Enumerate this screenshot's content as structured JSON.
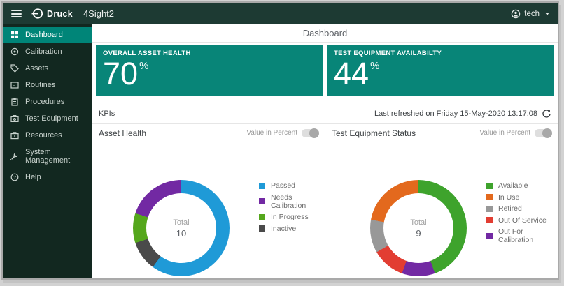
{
  "window": {
    "topbar": {
      "brand_bold": "Druck",
      "brand_product": "4Sight2",
      "user": "tech",
      "icons": [
        "menu-icon",
        "druck-logo",
        "user-icon",
        "caret-down-icon"
      ]
    },
    "sidebar": {
      "items": [
        {
          "label": "Dashboard",
          "icon": "dashboard-icon",
          "active": true
        },
        {
          "label": "Calibration",
          "icon": "calibration-icon",
          "active": false
        },
        {
          "label": "Assets",
          "icon": "tag-icon",
          "active": false
        },
        {
          "label": "Routines",
          "icon": "routines-icon",
          "active": false
        },
        {
          "label": "Procedures",
          "icon": "clipboard-icon",
          "active": false
        },
        {
          "label": "Test Equipment",
          "icon": "test-equipment-icon",
          "active": false
        },
        {
          "label": "Resources",
          "icon": "briefcase-icon",
          "active": false
        },
        {
          "label": "System Management",
          "icon": "wrench-icon",
          "active": false
        },
        {
          "label": "Help",
          "icon": "help-icon",
          "active": false
        }
      ]
    },
    "main": {
      "page_title": "Dashboard",
      "kpi_cards": [
        {
          "label": "OVERALL ASSET HEALTH",
          "value": "70",
          "unit": "%",
          "color": "#088578"
        },
        {
          "label": "TEST EQUIPMENT AVAILABILTY",
          "value": "44",
          "unit": "%",
          "color": "#088578"
        }
      ],
      "kpis_bar": {
        "title": "KPIs",
        "last_refreshed": "Last refreshed on Friday 15-May-2020 13:17:08",
        "refresh_icon": "refresh-icon"
      }
    }
  },
  "chart_data": [
    {
      "type": "pie",
      "subtype": "donut",
      "title": "Asset Health",
      "toggle_label": "Value in Percent",
      "toggle_state": "off",
      "center_label": "Total",
      "total": 10,
      "legend_position": "right",
      "slices": [
        {
          "label": "Passed",
          "value": 6,
          "color": "#1f9ad7"
        },
        {
          "label": "Needs Calibration",
          "value": 2,
          "color": "#7229a3"
        },
        {
          "label": "In Progress",
          "value": 1,
          "color": "#55a71c"
        },
        {
          "label": "Inactive",
          "value": 1,
          "color": "#4a4a4a"
        }
      ],
      "draw_order_clockwise": [
        "Passed",
        "Inactive",
        "In Progress",
        "Needs Calibration"
      ]
    },
    {
      "type": "pie",
      "subtype": "donut",
      "title": "Test Equipment Status",
      "toggle_label": "Value in Percent",
      "toggle_state": "off",
      "center_label": "Total",
      "total": 9,
      "legend_position": "right",
      "slices": [
        {
          "label": "Available",
          "value": 4,
          "color": "#3ea32c"
        },
        {
          "label": "In Use",
          "value": 2,
          "color": "#e3691d"
        },
        {
          "label": "Retired",
          "value": 1,
          "color": "#989898"
        },
        {
          "label": "Out Of Service",
          "value": 1,
          "color": "#e23d32"
        },
        {
          "label": "Out For Calibration",
          "value": 1,
          "color": "#7229a3"
        }
      ],
      "draw_order_clockwise": [
        "Available",
        "Out For Calibration",
        "Out Of Service",
        "Retired",
        "In Use"
      ]
    }
  ]
}
